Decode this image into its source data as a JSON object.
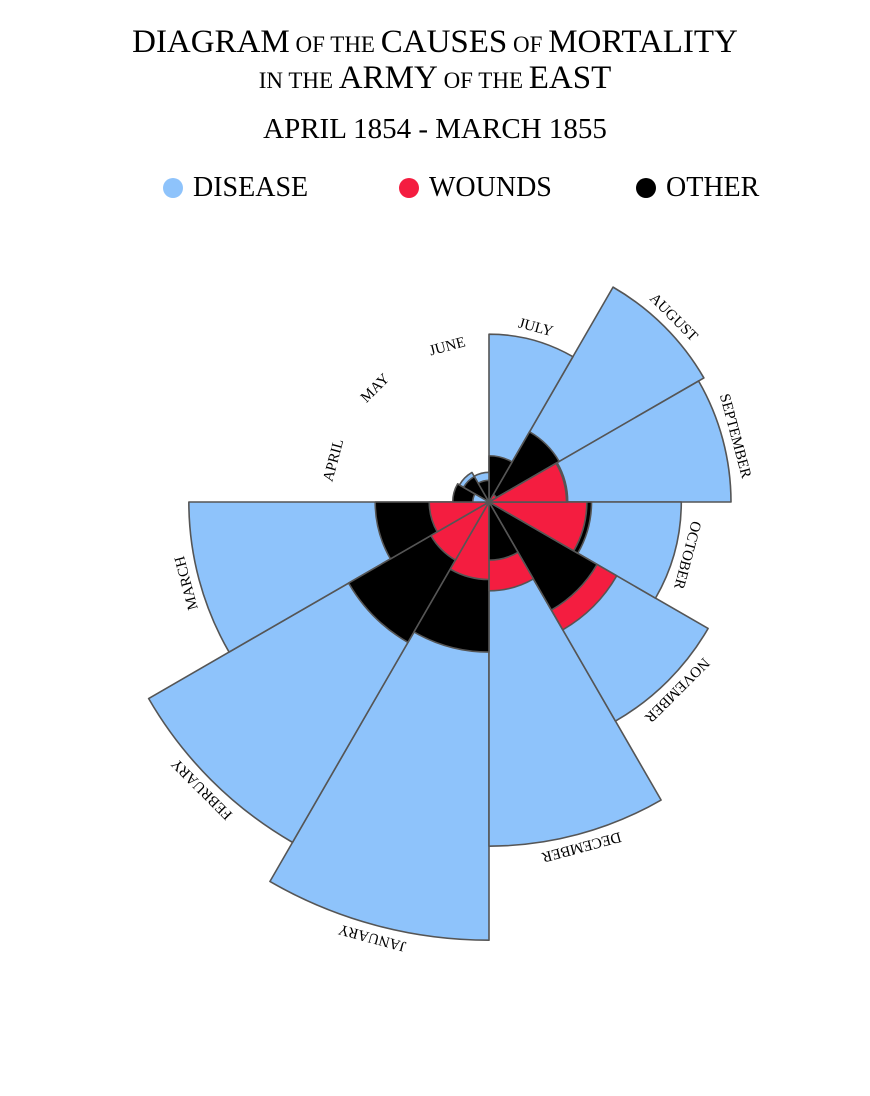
{
  "title": {
    "line1_big1": "DIAGRAM",
    "line1_small1": " OF THE ",
    "line1_big2": "CAUSES",
    "line1_small2": " OF ",
    "line1_big3": "MORTALITY",
    "line2_small1": "IN THE ",
    "line2_big1": "ARMY",
    "line2_small2": " OF THE ",
    "line2_big2": "EAST"
  },
  "subtitle": "APRIL 1854 - MARCH 1855",
  "legend": [
    {
      "label": "DISEASE",
      "color": "#8ec3fb"
    },
    {
      "label": "WOUNDS",
      "color": "#f41d40"
    },
    {
      "label": "OTHER",
      "color": "#000000"
    }
  ],
  "chart_data": {
    "type": "polar-area",
    "title": "DIAGRAM OF THE CAUSES OF MORTALITY IN THE ARMY OF THE EAST",
    "subtitle": "APRIL 1854 - MARCH 1855",
    "categories": [
      "APRIL",
      "MAY",
      "JUNE",
      "JULY",
      "AUGUST",
      "SEPTEMBER",
      "OCTOBER",
      "NOVEMBER",
      "DECEMBER",
      "JANUARY",
      "FEBRUARY",
      "MARCH"
    ],
    "series": [
      {
        "name": "DISEASE",
        "color": "#8ec3fb",
        "values": [
          1.4,
          6.2,
          4.7,
          150,
          328,
          312,
          197,
          341,
          631,
          1023,
          823,
          480
        ]
      },
      {
        "name": "WOUNDS",
        "color": "#f41d40",
        "values": [
          0,
          0,
          0,
          0,
          0.4,
          32,
          51,
          116,
          42,
          32,
          24,
          19
        ]
      },
      {
        "name": "OTHER",
        "color": "#000000",
        "values": [
          7,
          4.6,
          2.5,
          11.4,
          35,
          33,
          56,
          83,
          18,
          120,
          140,
          69
        ]
      }
    ],
    "scale": "sqrt"
  }
}
